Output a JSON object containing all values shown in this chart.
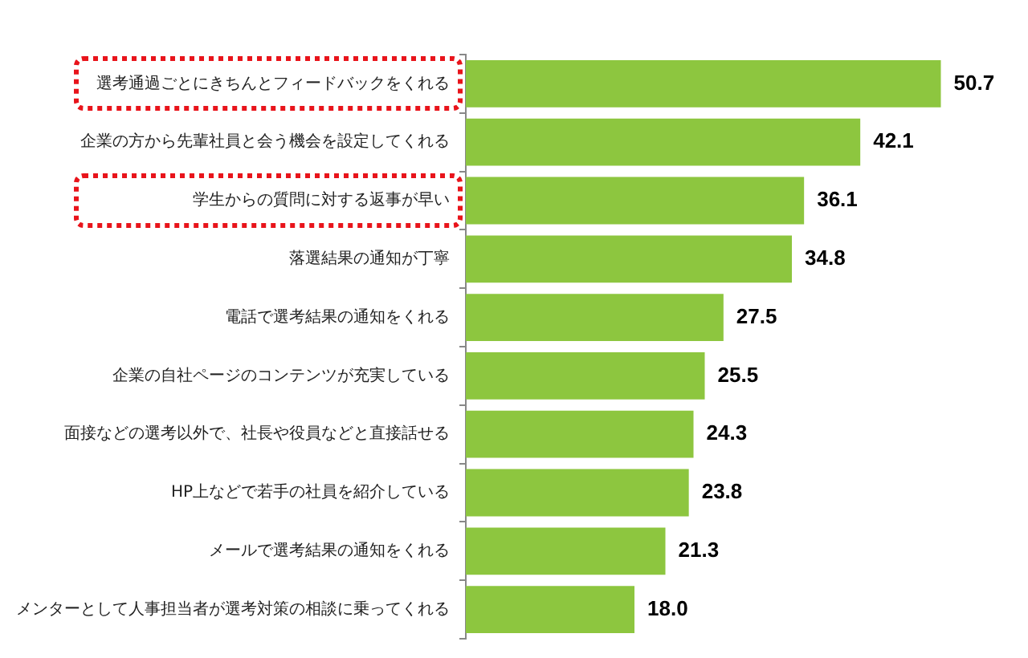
{
  "chart_data": {
    "type": "bar",
    "orientation": "horizontal",
    "categories": [
      "選考通過ごとにきちんとフィードバックをくれる",
      "企業の方から先輩社員と会う機会を設定してくれる",
      "学生からの質問に対する返事が早い",
      "落選結果の通知が丁寧",
      "電話で選考結果の通知をくれる",
      "企業の自社ページのコンテンツが充実している",
      "面接などの選考以外で、社長や役員などと直接話せる",
      "HP上などで若手の社員を紹介している",
      "メールで選考結果の通知をくれる",
      "メンターとして人事担当者が選考対策の相談に乗ってくれる"
    ],
    "values": [
      50.7,
      42.1,
      36.1,
      34.8,
      27.5,
      25.5,
      24.3,
      23.8,
      21.3,
      18.0
    ],
    "value_labels": [
      "50.7",
      "42.1",
      "36.1",
      "34.8",
      "27.5",
      "25.5",
      "24.3",
      "23.8",
      "21.3",
      "18.0"
    ],
    "color": "#8dc63f",
    "grid": false,
    "legend": false,
    "tick_labels": "y"
  }
}
